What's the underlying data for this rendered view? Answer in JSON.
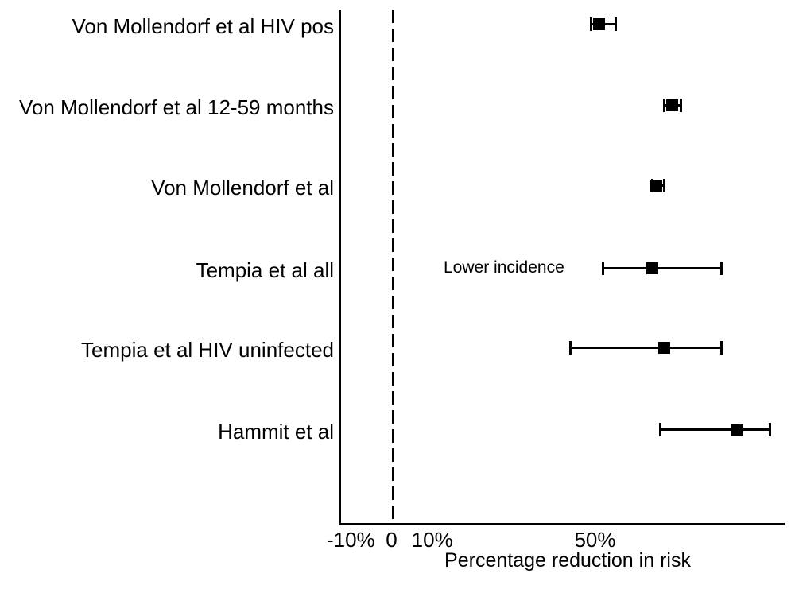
{
  "figure": {
    "background": "#ffffff",
    "ink_color": "#000000"
  },
  "chart_data": {
    "type": "scatter",
    "subtype": "forest-plot-horizontal-errorbars",
    "title": "",
    "xlabel": "Percentage reduction in risk",
    "ylabel": "",
    "units": "percent",
    "xlim": [
      -12.7,
      96.7
    ],
    "grid": false,
    "legend": false,
    "x_ticks": [
      {
        "label": "-10%",
        "value": -10
      },
      {
        "label": "0",
        "value": 0
      },
      {
        "label": "10%",
        "value": 10
      },
      {
        "label": "50%",
        "value": 50
      }
    ],
    "zero_reference_line": {
      "value": 0,
      "style": "dashed"
    },
    "annotation": {
      "text": "Lower incidence",
      "attached_to": "Tempia et al all",
      "x_value": 28
    },
    "series": [
      {
        "label": "Von Mollendorf et al HIV pos",
        "estimate": 51,
        "ci_low": 49,
        "ci_high": 55
      },
      {
        "label": "Von Mollendorf et al 12-59 months",
        "estimate": 69,
        "ci_low": 67,
        "ci_high": 71
      },
      {
        "label": "Von Mollendorf et al",
        "estimate": 65,
        "ci_low": 64,
        "ci_high": 67
      },
      {
        "label": "Tempia et al all",
        "estimate": 64,
        "ci_low": 52,
        "ci_high": 81
      },
      {
        "label": "Tempia et al HIV uninfected",
        "estimate": 67,
        "ci_low": 44,
        "ci_high": 81
      },
      {
        "label": "Hammit et al",
        "estimate": 85,
        "ci_low": 66,
        "ci_high": 93
      }
    ]
  }
}
